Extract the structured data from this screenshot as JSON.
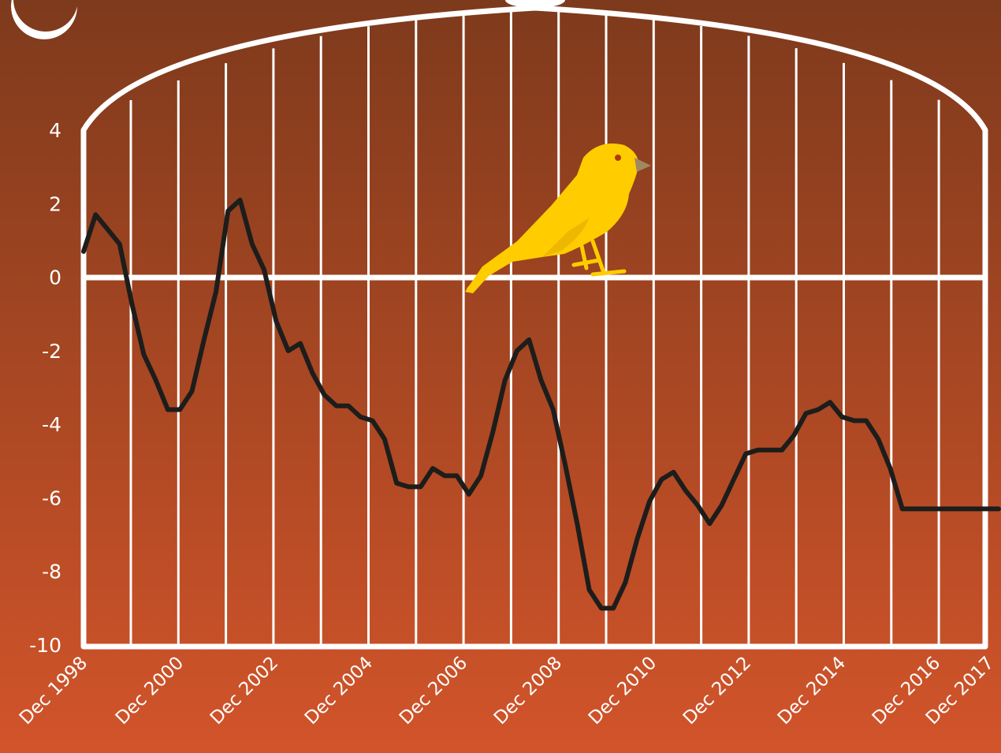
{
  "colors": {
    "background_top": "#7e3a1c",
    "background_bottom": "#d2542a",
    "cage": "#ffffff",
    "line": "#1d1d1b",
    "bird": "#ffcc00",
    "bird_beak": "#a08860"
  },
  "icons": [
    "crescent-moon-icon",
    "cage-hook-icon",
    "canary-bird-icon"
  ],
  "chart_data": {
    "type": "line",
    "title": "",
    "xlabel": "",
    "ylabel": "",
    "ylim": [
      -10,
      4
    ],
    "xlim": [
      "Dec 1998",
      "Dec 2017"
    ],
    "yticks": [
      "4",
      "2",
      "0",
      "-2",
      "-4",
      "-6",
      "-8",
      "-10"
    ],
    "xticks": [
      "Dec 1998",
      "Dec 2000",
      "Dec 2002",
      "Dec 2004",
      "Dec 2006",
      "Dec 2008",
      "Dec 2010",
      "Dec 2012",
      "Dec 2014",
      "Dec 2016",
      "Dec 2017"
    ],
    "grid": "vertical",
    "legend": "none",
    "series": [
      {
        "x": [
          "Dec 1998",
          "Mar 1999",
          "Jun 1999",
          "Sep 1999",
          "Dec 1999",
          "Mar 2000",
          "Jun 2000",
          "Sep 2000",
          "Dec 2000",
          "Mar 2001",
          "Jun 2001",
          "Sep 2001",
          "Dec 2001",
          "Mar 2002",
          "Jun 2002",
          "Sep 2002",
          "Dec 2002",
          "Mar 2003",
          "Jun 2003",
          "Sep 2003",
          "Dec 2003",
          "Mar 2004",
          "Jun 2004",
          "Sep 2004",
          "Dec 2004",
          "Mar 2005",
          "Jun 2005",
          "Sep 2005",
          "Dec 2005",
          "Mar 2006",
          "Jun 2006",
          "Sep 2006",
          "Dec 2006",
          "Mar 2007",
          "Jun 2007",
          "Sep 2007",
          "Dec 2007",
          "Mar 2008",
          "Jun 2008",
          "Sep 2008",
          "Dec 2008",
          "Mar 2009",
          "Jun 2009",
          "Sep 2009",
          "Dec 2009",
          "Mar 2010",
          "Jun 2010",
          "Sep 2010",
          "Dec 2010",
          "Mar 2011",
          "Jun 2011",
          "Sep 2011",
          "Dec 2011",
          "Mar 2012",
          "Jun 2012",
          "Sep 2012",
          "Dec 2012",
          "Mar 2013",
          "Jun 2013",
          "Sep 2013",
          "Dec 2013",
          "Mar 2014",
          "Jun 2014",
          "Sep 2014",
          "Dec 2014",
          "Mar 2015",
          "Jun 2015",
          "Sep 2015",
          "Dec 2015",
          "Mar 2016",
          "Jun 2016",
          "Sep 2016",
          "Dec 2016",
          "Mar 2017",
          "Jun 2017",
          "Sep 2017",
          "Dec 2017"
        ],
        "values": [
          0.7,
          1.7,
          1.3,
          0.9,
          -0.7,
          -2.1,
          -2.8,
          -3.6,
          -3.6,
          -3.1,
          -1.7,
          -0.4,
          1.8,
          2.1,
          0.9,
          0.2,
          -1.2,
          -2.0,
          -1.8,
          -2.6,
          -3.2,
          -3.5,
          -3.5,
          -3.8,
          -3.9,
          -4.4,
          -5.6,
          -5.7,
          -5.7,
          -5.2,
          -5.4,
          -5.4,
          -5.9,
          -5.4,
          -4.2,
          -2.8,
          -2.0,
          -1.7,
          -2.8,
          -3.6,
          -5.1,
          -6.7,
          -8.5,
          -9.0,
          -9.0,
          -8.3,
          -7.1,
          -6.1,
          -5.5,
          -5.3,
          -5.8,
          -6.2,
          -6.7,
          -6.2,
          -5.5,
          -4.8,
          -4.7,
          -4.7,
          -4.7,
          -4.3,
          -3.7,
          -3.6,
          -3.4,
          -3.8,
          -3.9,
          -3.9,
          -4.4,
          -5.2,
          -6.3,
          -6.3,
          -6.3,
          -6.3,
          -6.3,
          -6.3,
          -6.3,
          -6.3,
          -6.3
        ]
      }
    ]
  }
}
